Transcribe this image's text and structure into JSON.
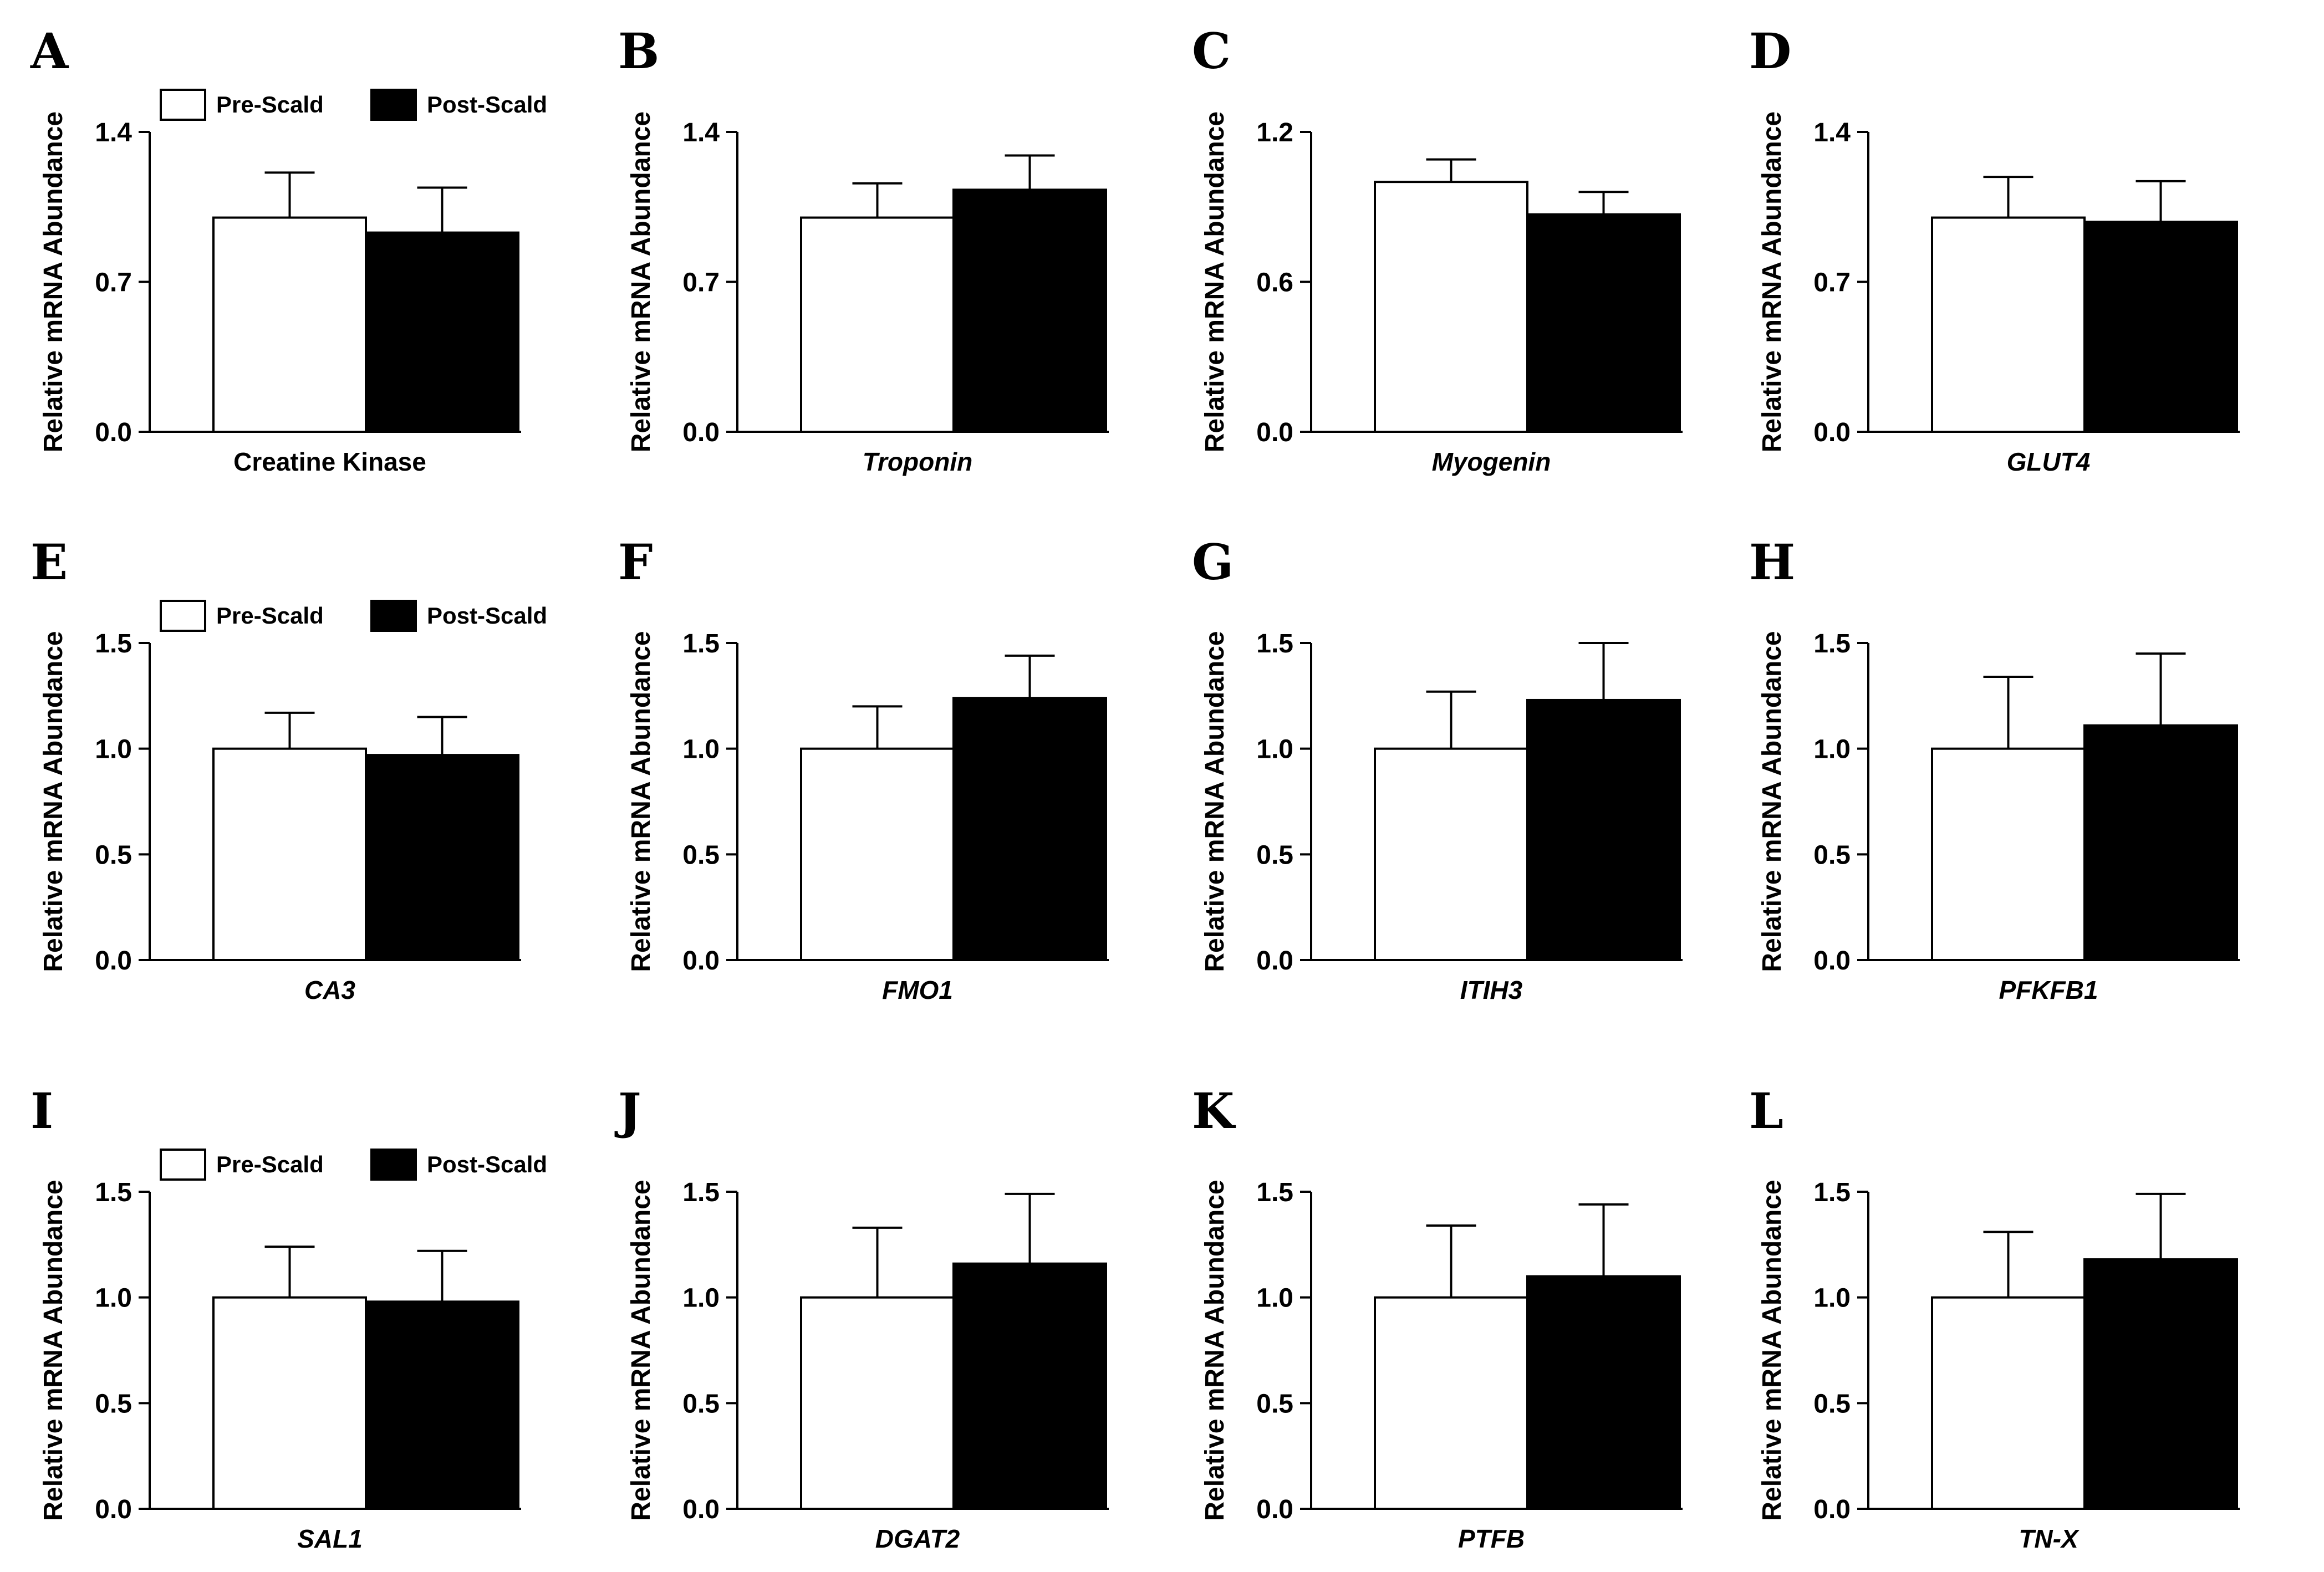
{
  "chart_data": [
    {
      "panel": "A",
      "type": "bar",
      "ylabel": "Relative mRNA Abundance",
      "xlabel": "Creatine Kinase",
      "italic": false,
      "ylim": [
        0,
        1.4
      ],
      "yticks": [
        0.0,
        0.7,
        1.4
      ],
      "yticklabels": [
        "0.0",
        "0.7",
        "1.4"
      ],
      "legend": true,
      "series": [
        {
          "name": "Pre-Scald",
          "value": 1.0,
          "error": 0.21,
          "color": "#ffffff"
        },
        {
          "name": "Post-Scald",
          "value": 0.93,
          "error": 0.21,
          "color": "#000000"
        }
      ]
    },
    {
      "panel": "B",
      "type": "bar",
      "ylabel": "Relative mRNA Abundance",
      "xlabel": "Troponin",
      "italic": true,
      "ylim": [
        0,
        1.4
      ],
      "yticks": [
        0.0,
        0.7,
        1.4
      ],
      "yticklabels": [
        "0.0",
        "0.7",
        "1.4"
      ],
      "legend": false,
      "series": [
        {
          "name": "Pre-Scald",
          "value": 1.0,
          "error": 0.16,
          "color": "#ffffff"
        },
        {
          "name": "Post-Scald",
          "value": 1.13,
          "error": 0.16,
          "color": "#000000"
        }
      ]
    },
    {
      "panel": "C",
      "type": "bar",
      "ylabel": "Relative mRNA Abundance",
      "xlabel": "Myogenin",
      "italic": true,
      "ylim": [
        0,
        1.2
      ],
      "yticks": [
        0.0,
        0.6,
        1.2
      ],
      "yticklabels": [
        "0.0",
        "0.6",
        "1.2"
      ],
      "legend": false,
      "series": [
        {
          "name": "Pre-Scald",
          "value": 1.0,
          "error": 0.09,
          "color": "#ffffff"
        },
        {
          "name": "Post-Scald",
          "value": 0.87,
          "error": 0.09,
          "color": "#000000"
        }
      ]
    },
    {
      "panel": "D",
      "type": "bar",
      "ylabel": "Relative mRNA Abundance",
      "xlabel": "GLUT4",
      "italic": true,
      "ylim": [
        0,
        1.4
      ],
      "yticks": [
        0.0,
        0.7,
        1.4
      ],
      "yticklabels": [
        "0.0",
        "0.7",
        "1.4"
      ],
      "legend": false,
      "series": [
        {
          "name": "Pre-Scald",
          "value": 1.0,
          "error": 0.19,
          "color": "#ffffff"
        },
        {
          "name": "Post-Scald",
          "value": 0.98,
          "error": 0.19,
          "color": "#000000"
        }
      ]
    },
    {
      "panel": "E",
      "type": "bar",
      "ylabel": "Relative mRNA Abundance",
      "xlabel": "CA3",
      "italic": true,
      "ylim": [
        0,
        1.5
      ],
      "yticks": [
        0.0,
        0.5,
        1.0,
        1.5
      ],
      "yticklabels": [
        "0.0",
        "0.5",
        "1.0",
        "1.5"
      ],
      "legend": true,
      "series": [
        {
          "name": "Pre-Scald",
          "value": 1.0,
          "error": 0.17,
          "color": "#ffffff"
        },
        {
          "name": "Post-Scald",
          "value": 0.97,
          "error": 0.18,
          "color": "#000000"
        }
      ]
    },
    {
      "panel": "F",
      "type": "bar",
      "ylabel": "Relative mRNA Abundance",
      "xlabel": "FMO1",
      "italic": true,
      "ylim": [
        0,
        1.5
      ],
      "yticks": [
        0.0,
        0.5,
        1.0,
        1.5
      ],
      "yticklabels": [
        "0.0",
        "0.5",
        "1.0",
        "1.5"
      ],
      "legend": false,
      "series": [
        {
          "name": "Pre-Scald",
          "value": 1.0,
          "error": 0.2,
          "color": "#ffffff"
        },
        {
          "name": "Post-Scald",
          "value": 1.24,
          "error": 0.2,
          "color": "#000000"
        }
      ]
    },
    {
      "panel": "G",
      "type": "bar",
      "ylabel": "Relative mRNA Abundance",
      "xlabel": "ITIH3",
      "italic": true,
      "ylim": [
        0,
        1.5
      ],
      "yticks": [
        0.0,
        0.5,
        1.0,
        1.5
      ],
      "yticklabels": [
        "0.0",
        "0.5",
        "1.0",
        "1.5"
      ],
      "legend": false,
      "series": [
        {
          "name": "Pre-Scald",
          "value": 1.0,
          "error": 0.27,
          "color": "#ffffff"
        },
        {
          "name": "Post-Scald",
          "value": 1.23,
          "error": 0.27,
          "color": "#000000"
        }
      ]
    },
    {
      "panel": "H",
      "type": "bar",
      "ylabel": "Relative mRNA Abundance",
      "xlabel": "PFKFB1",
      "italic": true,
      "ylim": [
        0,
        1.5
      ],
      "yticks": [
        0.0,
        0.5,
        1.0,
        1.5
      ],
      "yticklabels": [
        "0.0",
        "0.5",
        "1.0",
        "1.5"
      ],
      "legend": false,
      "series": [
        {
          "name": "Pre-Scald",
          "value": 1.0,
          "error": 0.34,
          "color": "#ffffff"
        },
        {
          "name": "Post-Scald",
          "value": 1.11,
          "error": 0.34,
          "color": "#000000"
        }
      ]
    },
    {
      "panel": "I",
      "type": "bar",
      "ylabel": "Relative mRNA Abundance",
      "xlabel": "SAL1",
      "italic": true,
      "ylim": [
        0,
        1.5
      ],
      "yticks": [
        0.0,
        0.5,
        1.0,
        1.5
      ],
      "yticklabels": [
        "0.0",
        "0.5",
        "1.0",
        "1.5"
      ],
      "legend": true,
      "series": [
        {
          "name": "Pre-Scald",
          "value": 1.0,
          "error": 0.24,
          "color": "#ffffff"
        },
        {
          "name": "Post-Scald",
          "value": 0.98,
          "error": 0.24,
          "color": "#000000"
        }
      ]
    },
    {
      "panel": "J",
      "type": "bar",
      "ylabel": "Relative mRNA Abundance",
      "xlabel": "DGAT2",
      "italic": true,
      "ylim": [
        0,
        1.5
      ],
      "yticks": [
        0.0,
        0.5,
        1.0,
        1.5
      ],
      "yticklabels": [
        "0.0",
        "0.5",
        "1.0",
        "1.5"
      ],
      "legend": false,
      "series": [
        {
          "name": "Pre-Scald",
          "value": 1.0,
          "error": 0.33,
          "color": "#ffffff"
        },
        {
          "name": "Post-Scald",
          "value": 1.16,
          "error": 0.33,
          "color": "#000000"
        }
      ]
    },
    {
      "panel": "K",
      "type": "bar",
      "ylabel": "Relative mRNA Abundance",
      "xlabel": "PTFB",
      "italic": true,
      "ylim": [
        0,
        1.5
      ],
      "yticks": [
        0.0,
        0.5,
        1.0,
        1.5
      ],
      "yticklabels": [
        "0.0",
        "0.5",
        "1.0",
        "1.5"
      ],
      "legend": false,
      "series": [
        {
          "name": "Pre-Scald",
          "value": 1.0,
          "error": 0.34,
          "color": "#ffffff"
        },
        {
          "name": "Post-Scald",
          "value": 1.1,
          "error": 0.34,
          "color": "#000000"
        }
      ]
    },
    {
      "panel": "L",
      "type": "bar",
      "ylabel": "Relative mRNA Abundance",
      "xlabel": "TN-X",
      "italic": true,
      "ylim": [
        0,
        1.5
      ],
      "yticks": [
        0.0,
        0.5,
        1.0,
        1.5
      ],
      "yticklabels": [
        "0.0",
        "0.5",
        "1.0",
        "1.5"
      ],
      "legend": false,
      "series": [
        {
          "name": "Pre-Scald",
          "value": 1.0,
          "error": 0.31,
          "color": "#ffffff"
        },
        {
          "name": "Post-Scald",
          "value": 1.18,
          "error": 0.31,
          "color": "#000000"
        }
      ]
    }
  ]
}
